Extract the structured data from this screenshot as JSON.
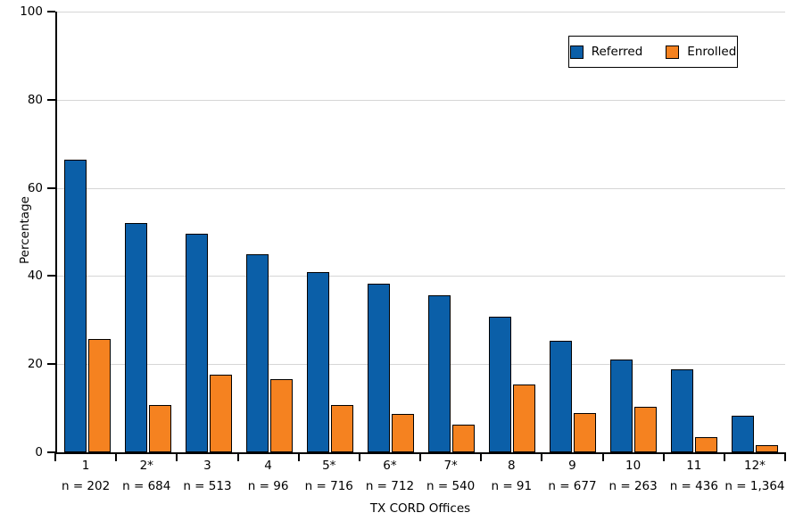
{
  "chart_data": {
    "type": "bar",
    "title": "",
    "xlabel": "TX CORD Offices",
    "ylabel": "Percentage",
    "ylim": [
      0,
      100
    ],
    "yticks": [
      0,
      20,
      40,
      60,
      80,
      100
    ],
    "grid": true,
    "legend_position": "top-right",
    "categories": [
      "1",
      "2*",
      "3",
      "4",
      "5*",
      "6*",
      "7*",
      "8",
      "9",
      "10",
      "11",
      "12*"
    ],
    "n_labels": [
      "n = 202",
      "n = 684",
      "n = 513",
      "n = 96",
      "n = 716",
      "n = 712",
      "n = 540",
      "n = 91",
      "n = 677",
      "n = 263",
      "n = 436",
      "n = 1,364"
    ],
    "series": [
      {
        "name": "Referred",
        "color": "#0b5fa8",
        "values": [
          66.5,
          52.0,
          49.5,
          44.9,
          40.9,
          38.2,
          35.7,
          30.7,
          25.3,
          21.0,
          18.9,
          8.4
        ]
      },
      {
        "name": "Enrolled",
        "color": "#f58220",
        "values": [
          25.7,
          10.8,
          17.6,
          16.7,
          10.8,
          8.7,
          6.2,
          15.4,
          8.9,
          10.3,
          3.4,
          1.7
        ]
      }
    ],
    "colors": {
      "grid": "#d6d6d6",
      "axis": "#000000",
      "bar_border": "#000000"
    }
  }
}
